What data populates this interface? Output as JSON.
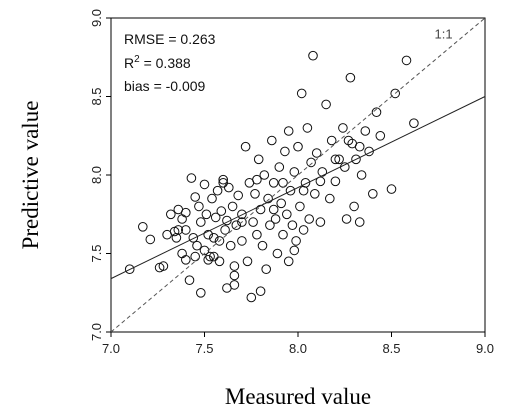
{
  "chart_data": {
    "type": "scatter",
    "xlabel": "Measured value",
    "ylabel": "Predictive value",
    "xlim": [
      7.0,
      9.0
    ],
    "ylim": [
      7.0,
      9.0
    ],
    "x_ticks": [
      "7.0",
      "7.5",
      "8.0",
      "8.5",
      "9.0"
    ],
    "y_ticks": [
      "7.0",
      "7.5",
      "8.0",
      "8.5",
      "9.0"
    ],
    "grid": false,
    "stats": {
      "rmse": "RMSE = 0.263",
      "r2_prefix": "R",
      "r2_sup": "2",
      "r2_value": " = 0.388",
      "bias": "bias = -0.009"
    },
    "reference_line": {
      "label": "1:1",
      "style": "dashed",
      "from": [
        7.0,
        7.0
      ],
      "to": [
        9.0,
        9.0
      ]
    },
    "regression_line": {
      "style": "solid",
      "from": [
        7.0,
        7.34
      ],
      "to": [
        9.0,
        8.5
      ]
    },
    "points": [
      [
        7.1,
        7.4
      ],
      [
        7.17,
        7.67
      ],
      [
        7.21,
        7.59
      ],
      [
        7.26,
        7.41
      ],
      [
        7.28,
        7.42
      ],
      [
        7.3,
        7.62
      ],
      [
        7.32,
        7.75
      ],
      [
        7.34,
        7.64
      ],
      [
        7.35,
        7.6
      ],
      [
        7.36,
        7.78
      ],
      [
        7.38,
        7.72
      ],
      [
        7.38,
        7.5
      ],
      [
        7.4,
        7.65
      ],
      [
        7.4,
        7.46
      ],
      [
        7.42,
        7.33
      ],
      [
        7.43,
        7.98
      ],
      [
        7.44,
        7.6
      ],
      [
        7.45,
        7.86
      ],
      [
        7.46,
        7.55
      ],
      [
        7.47,
        7.8
      ],
      [
        7.48,
        7.7
      ],
      [
        7.48,
        7.25
      ],
      [
        7.5,
        7.52
      ],
      [
        7.5,
        7.94
      ],
      [
        7.51,
        7.75
      ],
      [
        7.52,
        7.62
      ],
      [
        7.53,
        7.48
      ],
      [
        7.54,
        7.85
      ],
      [
        7.55,
        7.6
      ],
      [
        7.56,
        7.73
      ],
      [
        7.57,
        7.9
      ],
      [
        7.58,
        7.58
      ],
      [
        7.58,
        7.45
      ],
      [
        7.59,
        7.77
      ],
      [
        7.6,
        7.97
      ],
      [
        7.61,
        7.65
      ],
      [
        7.62,
        7.71
      ],
      [
        7.62,
        7.28
      ],
      [
        7.63,
        7.92
      ],
      [
        7.64,
        7.55
      ],
      [
        7.65,
        7.8
      ],
      [
        7.66,
        7.42
      ],
      [
        7.66,
        7.3
      ],
      [
        7.67,
        7.68
      ],
      [
        7.68,
        7.87
      ],
      [
        7.7,
        7.75
      ],
      [
        7.7,
        7.58
      ],
      [
        7.72,
        8.18
      ],
      [
        7.73,
        7.45
      ],
      [
        7.74,
        7.95
      ],
      [
        7.75,
        7.22
      ],
      [
        7.76,
        7.7
      ],
      [
        7.77,
        7.88
      ],
      [
        7.78,
        7.62
      ],
      [
        7.79,
        8.1
      ],
      [
        7.8,
        7.78
      ],
      [
        7.8,
        7.26
      ],
      [
        7.81,
        7.55
      ],
      [
        7.82,
        8.0
      ],
      [
        7.83,
        7.4
      ],
      [
        7.84,
        7.85
      ],
      [
        7.85,
        7.68
      ],
      [
        7.86,
        8.22
      ],
      [
        7.87,
        7.95
      ],
      [
        7.88,
        7.72
      ],
      [
        7.89,
        7.5
      ],
      [
        7.9,
        8.05
      ],
      [
        7.91,
        7.82
      ],
      [
        7.92,
        7.62
      ],
      [
        7.93,
        8.15
      ],
      [
        7.94,
        7.75
      ],
      [
        7.95,
        8.28
      ],
      [
        7.95,
        7.45
      ],
      [
        7.96,
        7.9
      ],
      [
        7.97,
        7.68
      ],
      [
        7.98,
        8.02
      ],
      [
        7.99,
        7.58
      ],
      [
        8.0,
        8.18
      ],
      [
        8.01,
        7.8
      ],
      [
        8.02,
        8.52
      ],
      [
        8.03,
        7.65
      ],
      [
        8.04,
        7.95
      ],
      [
        8.05,
        8.3
      ],
      [
        8.06,
        7.72
      ],
      [
        8.07,
        8.08
      ],
      [
        8.08,
        8.76
      ],
      [
        8.09,
        7.88
      ],
      [
        8.1,
        8.14
      ],
      [
        8.12,
        7.7
      ],
      [
        8.13,
        8.02
      ],
      [
        8.15,
        8.45
      ],
      [
        8.17,
        7.85
      ],
      [
        8.18,
        8.22
      ],
      [
        8.2,
        7.96
      ],
      [
        8.22,
        8.1
      ],
      [
        8.24,
        8.3
      ],
      [
        8.25,
        8.05
      ],
      [
        8.26,
        7.72
      ],
      [
        8.28,
        8.62
      ],
      [
        8.29,
        8.2
      ],
      [
        8.3,
        7.8
      ],
      [
        8.31,
        8.1
      ],
      [
        8.33,
        7.7
      ],
      [
        8.34,
        8.0
      ],
      [
        8.36,
        8.28
      ],
      [
        8.38,
        8.15
      ],
      [
        8.4,
        7.88
      ],
      [
        8.42,
        8.4
      ],
      [
        8.5,
        7.91
      ],
      [
        8.52,
        8.52
      ],
      [
        8.58,
        8.73
      ],
      [
        8.62,
        8.33
      ],
      [
        7.45,
        7.48
      ],
      [
        7.52,
        7.46
      ],
      [
        7.66,
        7.36
      ],
      [
        7.36,
        7.65
      ],
      [
        7.4,
        7.76
      ],
      [
        7.55,
        7.48
      ],
      [
        7.6,
        7.95
      ],
      [
        7.7,
        7.7
      ],
      [
        7.78,
        7.97
      ],
      [
        7.87,
        7.78
      ],
      [
        7.92,
        7.95
      ],
      [
        7.98,
        7.52
      ],
      [
        8.03,
        7.9
      ],
      [
        8.12,
        7.96
      ],
      [
        8.2,
        8.1
      ],
      [
        8.27,
        8.22
      ],
      [
        8.33,
        8.18
      ],
      [
        8.44,
        8.25
      ]
    ]
  }
}
